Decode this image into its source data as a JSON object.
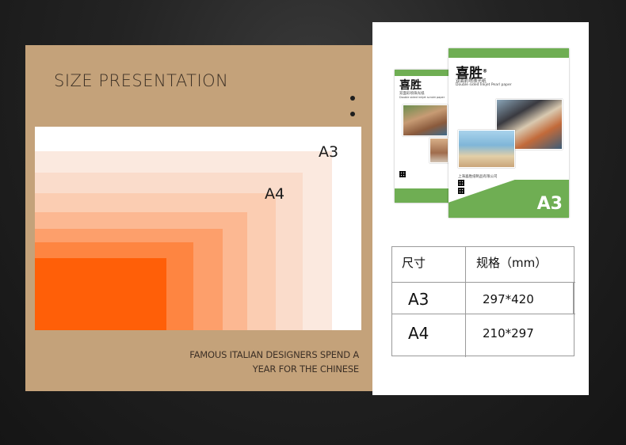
{
  "left": {
    "title": "SIZE PRESENTATION",
    "labels": {
      "a3": "A3",
      "a4": "A4"
    },
    "caption_line1": "FAMOUS ITALIAN DESIGNERS SPEND A",
    "caption_line2": "YEAR FOR THE CHINESE",
    "colors": {
      "panel": "#c4a27a",
      "nested_rects": [
        "#fbe9df",
        "#fadccb",
        "#fbcdb2",
        "#fcb892",
        "#fd9f6b",
        "#fe8541",
        "#ff5f08"
      ]
    }
  },
  "product": {
    "brand": "喜胜",
    "trademark": "®",
    "subtitle_cn": "双面彩喷珠光纸",
    "subtitle_en": "Double sided Inkjet Pearl paper",
    "small_subtitle_cn": "双面彩喷珠光纸",
    "small_subtitle_en": "Double sided inkjet scrubt paper",
    "company_cn": "上海喜胜纸制品有限公司",
    "size_mark": "A3",
    "colors": {
      "band": "#6fae53"
    }
  },
  "table": {
    "header_size": "尺寸",
    "header_spec": "规格（mm）",
    "rows": [
      {
        "size": "A3",
        "spec": "297*420"
      },
      {
        "size": "A4",
        "spec": "210*297"
      }
    ]
  }
}
